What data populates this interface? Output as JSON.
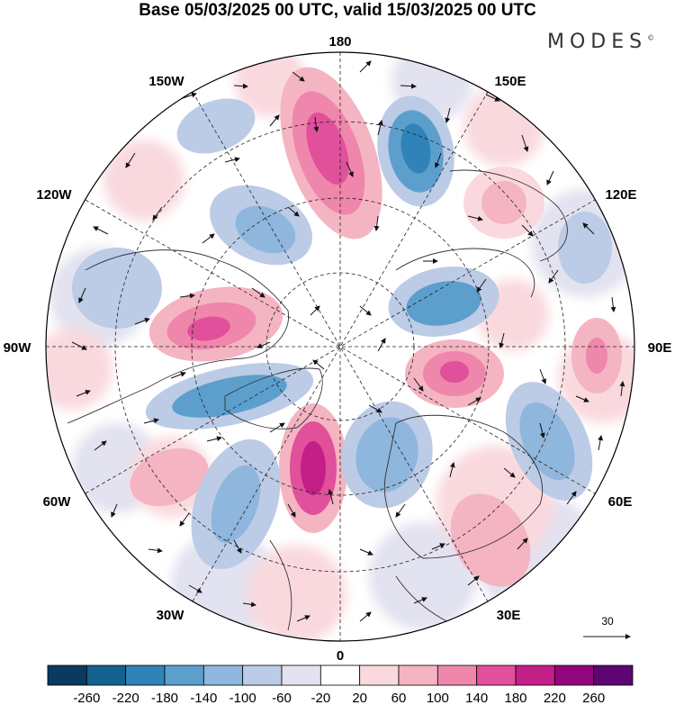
{
  "title": "Base 05/03/2025 00 UTC, valid 15/03/2025 00 UTC",
  "brand": "MODES",
  "brand_mark": "©",
  "longitude_labels": {
    "lon_180": "180",
    "lon_150E": "150E",
    "lon_120E": "120E",
    "lon_90E": "90E",
    "lon_60E": "60E",
    "lon_30E": "30E",
    "lon_0": "0",
    "lon_30W": "30W",
    "lon_60W": "60W",
    "lon_90W": "90W",
    "lon_120W": "120W",
    "lon_150W": "150W"
  },
  "reference_vector": {
    "label": "30"
  },
  "colorbar": {
    "ticks": [
      "-260",
      "-220",
      "-180",
      "-140",
      "-100",
      "-60",
      "-20",
      "20",
      "60",
      "100",
      "140",
      "180",
      "220",
      "260"
    ],
    "colors": [
      "#0b3a5e",
      "#14618f",
      "#2f83b8",
      "#5c9fcd",
      "#8fb6dc",
      "#bccbe6",
      "#e2e2f0",
      "#ffffff",
      "#f9d9de",
      "#f5b4c2",
      "#ef86ab",
      "#e0509b",
      "#c41f86",
      "#92077b",
      "#5c0573"
    ]
  },
  "colors": {
    "negative_strong": "#2f83b8",
    "negative_light": "#bccbe6",
    "positive_light": "#f5b4c2",
    "positive_strong": "#c41f86",
    "land_background": "#ececec"
  },
  "map_type": "north polar stereographic anomaly map with wind vectors"
}
